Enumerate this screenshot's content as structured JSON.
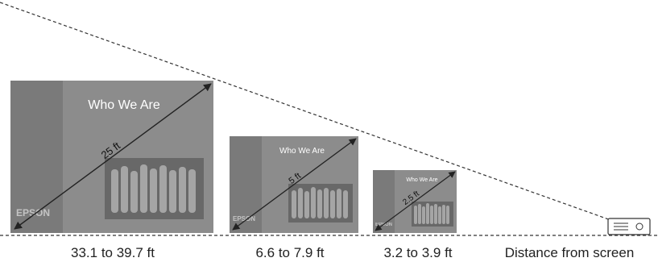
{
  "screens": [
    {
      "title": "Who We Are",
      "brand": "EPSON",
      "diagonal_label": "25 ft",
      "distance_label": "33.1 to 39.7 ft"
    },
    {
      "title": "Who We Are",
      "brand": "EPSON",
      "diagonal_label": "5 ft",
      "distance_label": "6.6 to 7.9 ft"
    },
    {
      "title": "Who We Are",
      "brand": "EPSON",
      "diagonal_label": "2.5 ft",
      "distance_label": "3.2 to 3.9 ft"
    }
  ],
  "projector_label": "Distance from screen",
  "colors": {
    "screen_fill": "#8c8c8c",
    "screen_stripe": "#7a7a7a",
    "photo_fill": "#686868",
    "line": "#333333"
  },
  "icons": {
    "projector": "projector-icon",
    "people": "group-photo"
  }
}
